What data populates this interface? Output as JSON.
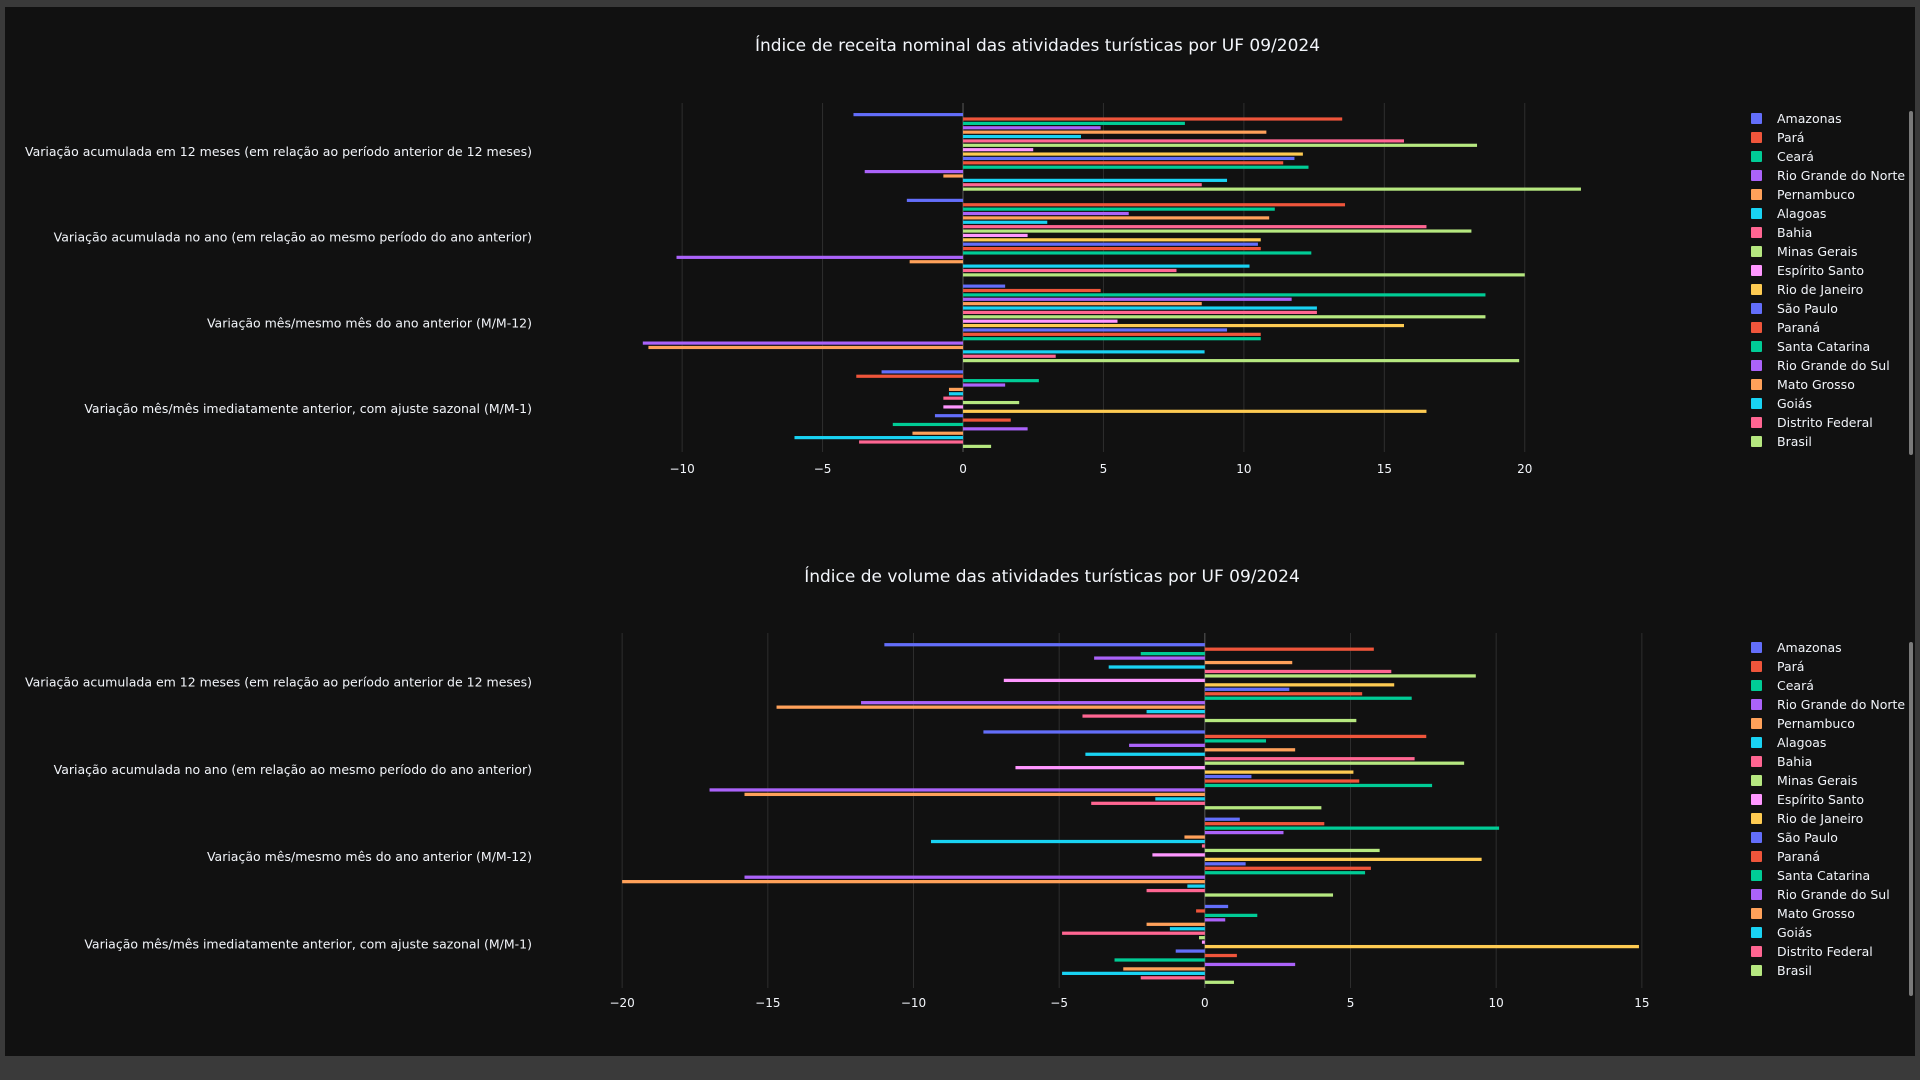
{
  "chart_data": [
    {
      "type": "bar",
      "orientation": "horizontal",
      "title": "Índice de receita nominal das atividades turísticas por UF 09/2024",
      "categories": [
        "Variação acumulada em 12 meses (em relação ao período anterior de 12 meses)",
        "Variação acumulada no ano (em relação ao mesmo período do ano anterior)",
        "Variação mês/mesmo mês do ano anterior (M/M-12)",
        "Variação mês/mês imediatamente anterior, com ajuste sazonal (M/M-1)"
      ],
      "xlim": [
        -11.5,
        22.5
      ],
      "xticks": [
        -10,
        -5,
        0,
        5,
        10,
        15,
        20
      ],
      "xtick_labels": [
        "−10",
        "−5",
        "0",
        "5",
        "10",
        "15",
        "20"
      ],
      "grid": true,
      "legend_position": "right",
      "series": [
        {
          "name": "Amazonas",
          "color": "#636efa",
          "values": [
            -3.9,
            -2.0,
            1.5,
            -2.9
          ]
        },
        {
          "name": "Pará",
          "color": "#ef553b",
          "values": [
            13.5,
            13.6,
            4.9,
            -3.8
          ]
        },
        {
          "name": "Ceará",
          "color": "#00cc96",
          "values": [
            7.9,
            11.1,
            18.6,
            2.7
          ]
        },
        {
          "name": "Rio Grande do Norte",
          "color": "#ab63fa",
          "values": [
            4.9,
            5.9,
            11.7,
            1.5
          ]
        },
        {
          "name": "Pernambuco",
          "color": "#ffa15a",
          "values": [
            10.8,
            10.9,
            8.5,
            -0.5
          ]
        },
        {
          "name": "Alagoas",
          "color": "#19d3f3",
          "values": [
            4.2,
            3.0,
            12.6,
            -0.5
          ]
        },
        {
          "name": "Bahia",
          "color": "#ff6692",
          "values": [
            15.7,
            16.5,
            12.6,
            -0.7
          ]
        },
        {
          "name": "Minas Gerais",
          "color": "#b6e880",
          "values": [
            18.3,
            18.1,
            18.6,
            2.0
          ]
        },
        {
          "name": "Espírito Santo",
          "color": "#ff97ff",
          "values": [
            2.5,
            2.3,
            5.5,
            -0.7
          ]
        },
        {
          "name": "Rio de Janeiro",
          "color": "#fecb52",
          "values": [
            12.1,
            10.6,
            15.7,
            16.5
          ]
        },
        {
          "name": "São Paulo",
          "color": "#636efa",
          "values": [
            11.8,
            10.5,
            9.4,
            -1.0
          ]
        },
        {
          "name": "Paraná",
          "color": "#ef553b",
          "values": [
            11.4,
            10.6,
            10.6,
            1.7
          ]
        },
        {
          "name": "Santa Catarina",
          "color": "#00cc96",
          "values": [
            12.3,
            12.4,
            10.6,
            -2.5
          ]
        },
        {
          "name": "Rio Grande do Sul",
          "color": "#ab63fa",
          "values": [
            -3.5,
            -10.2,
            -11.4,
            2.3
          ]
        },
        {
          "name": "Mato Grosso",
          "color": "#ffa15a",
          "values": [
            -0.7,
            -1.9,
            -11.2,
            -1.8
          ]
        },
        {
          "name": "Goiás",
          "color": "#19d3f3",
          "values": [
            9.4,
            10.2,
            8.6,
            -6.0
          ]
        },
        {
          "name": "Distrito Federal",
          "color": "#ff6692",
          "values": [
            8.5,
            7.6,
            3.3,
            -3.7
          ]
        },
        {
          "name": "Brasil",
          "color": "#b6e880",
          "values": [
            22.0,
            20.0,
            19.8,
            1.0
          ]
        }
      ]
    },
    {
      "type": "bar",
      "orientation": "horizontal",
      "title": "Índice de volume das atividades turísticas por UF 09/2024",
      "categories": [
        "Variação acumulada em 12 meses (em relação ao período anterior de 12 meses)",
        "Variação acumulada no ano (em relação ao mesmo período do ano anterior)",
        "Variação mês/mesmo mês do ano anterior (M/M-12)",
        "Variação mês/mês imediatamente anterior, com ajuste sazonal (M/M-1)"
      ],
      "xlim": [
        -21,
        16
      ],
      "xticks": [
        -20,
        -15,
        -10,
        -5,
        0,
        5,
        10,
        15
      ],
      "xtick_labels": [
        "−20",
        "−15",
        "−10",
        "−5",
        "0",
        "5",
        "10",
        "15"
      ],
      "grid": true,
      "legend_position": "right",
      "series": [
        {
          "name": "Amazonas",
          "color": "#636efa",
          "values": [
            -11.0,
            -7.6,
            1.2,
            0.8
          ]
        },
        {
          "name": "Pará",
          "color": "#ef553b",
          "values": [
            5.8,
            7.6,
            4.1,
            -0.3
          ]
        },
        {
          "name": "Ceará",
          "color": "#00cc96",
          "values": [
            -2.2,
            2.1,
            10.1,
            1.8
          ]
        },
        {
          "name": "Rio Grande do Norte",
          "color": "#ab63fa",
          "values": [
            -3.8,
            -2.6,
            2.7,
            0.7
          ]
        },
        {
          "name": "Pernambuco",
          "color": "#ffa15a",
          "values": [
            3.0,
            3.1,
            -0.7,
            -2.0
          ]
        },
        {
          "name": "Alagoas",
          "color": "#19d3f3",
          "values": [
            -3.3,
            -4.1,
            -9.4,
            -1.2
          ]
        },
        {
          "name": "Bahia",
          "color": "#ff6692",
          "values": [
            6.4,
            7.2,
            -0.1,
            -4.9
          ]
        },
        {
          "name": "Minas Gerais",
          "color": "#b6e880",
          "values": [
            9.3,
            8.9,
            6.0,
            -0.2
          ]
        },
        {
          "name": "Espírito Santo",
          "color": "#ff97ff",
          "values": [
            -6.9,
            -6.5,
            -1.8,
            -0.1
          ]
        },
        {
          "name": "Rio de Janeiro",
          "color": "#fecb52",
          "values": [
            6.5,
            5.1,
            9.5,
            14.9
          ]
        },
        {
          "name": "São Paulo",
          "color": "#636efa",
          "values": [
            2.9,
            1.6,
            1.4,
            -1.0
          ]
        },
        {
          "name": "Paraná",
          "color": "#ef553b",
          "values": [
            5.4,
            5.3,
            5.7,
            1.1
          ]
        },
        {
          "name": "Santa Catarina",
          "color": "#00cc96",
          "values": [
            7.1,
            7.8,
            5.5,
            -3.1
          ]
        },
        {
          "name": "Rio Grande do Sul",
          "color": "#ab63fa",
          "values": [
            -11.8,
            -17.0,
            -15.8,
            3.1
          ]
        },
        {
          "name": "Mato Grosso",
          "color": "#ffa15a",
          "values": [
            -14.7,
            -15.8,
            -20.0,
            -2.8
          ]
        },
        {
          "name": "Goiás",
          "color": "#19d3f3",
          "values": [
            -2.0,
            -1.7,
            -0.6,
            -4.9
          ]
        },
        {
          "name": "Distrito Federal",
          "color": "#ff6692",
          "values": [
            -4.2,
            -3.9,
            -2.0,
            -2.2
          ]
        },
        {
          "name": "Brasil",
          "color": "#b6e880",
          "values": [
            5.2,
            4.0,
            4.4,
            1.0
          ]
        }
      ]
    }
  ]
}
